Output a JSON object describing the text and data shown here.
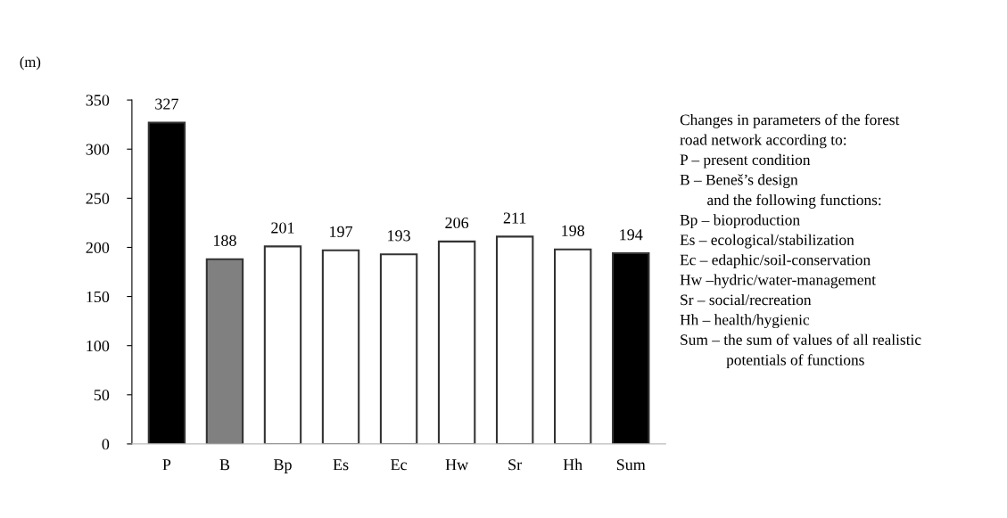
{
  "chart_data": {
    "type": "bar",
    "ylabel": "(m)",
    "categories": [
      "P",
      "B",
      "Bp",
      "Es",
      "Ec",
      "Hw",
      "Sr",
      "Hh",
      "Sum"
    ],
    "values": [
      327,
      188,
      201,
      197,
      193,
      206,
      211,
      198,
      194
    ],
    "colors": [
      "#000000",
      "#808080",
      "#ffffff",
      "#ffffff",
      "#ffffff",
      "#ffffff",
      "#ffffff",
      "#ffffff",
      "#000000"
    ],
    "ylim": [
      0,
      350
    ],
    "yticks": [
      0,
      50,
      100,
      150,
      200,
      250,
      300,
      350
    ],
    "data_labels": true,
    "grid": false,
    "legend": false,
    "annotations": [
      "Changes in parameters of the forest\nroad network according to:\nP – present condition\nB – Beneš’s design\n       and the following functions:\nBp – bioproduction\nEs – ecological/stabilization\nEc – edaphic/soil-conservation\nHw –hydric/water-management\nSr – social/recreation\nHh – health/hygienic\nSum – the sum of values of all realistic\n            potentials of functions"
    ]
  }
}
